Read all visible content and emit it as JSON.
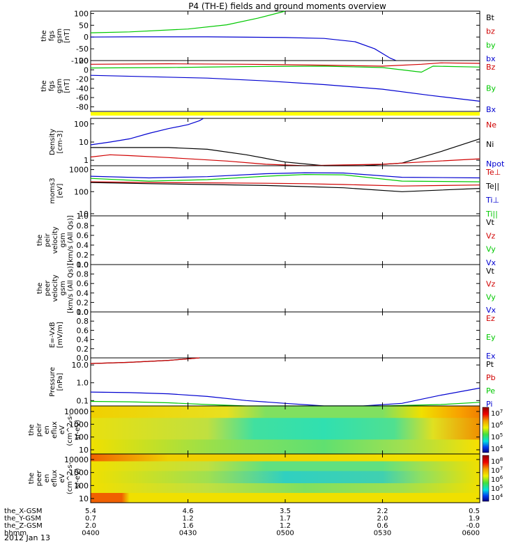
{
  "title": "P4 (TH-E) fields and ground moments overview",
  "date_label": "2012 Jan 13",
  "xaxis": {
    "rows": [
      {
        "label": "the_X-GSM",
        "values": [
          "5.4",
          "4.6",
          "3.5",
          "2.2",
          "0.5"
        ]
      },
      {
        "label": "the_Y-GSM",
        "values": [
          "0.7",
          "1.2",
          "1.7",
          "2.0",
          "1.9"
        ]
      },
      {
        "label": "the_Z-GSM",
        "values": [
          "2.0",
          "1.6",
          "1.2",
          "0.6",
          "-0.0"
        ]
      },
      {
        "label": "hhmm",
        "values": [
          "0400",
          "0430",
          "0500",
          "0530",
          "0600"
        ]
      }
    ],
    "time_range": [
      "0400",
      "0600"
    ]
  },
  "colors": {
    "black": "#000000",
    "red": "#d00000",
    "green": "#00c800",
    "blue": "#0000d0",
    "yellow": "#ffff00"
  },
  "chart_data": [
    {
      "type": "line",
      "ylabel": [
        "the",
        "fgs",
        "gsm",
        "[nT]"
      ],
      "yticks": [
        "100",
        "50",
        "0",
        "-50",
        "-100"
      ],
      "ylim": [
        -100,
        110
      ],
      "legend": [
        "Bt",
        "bz",
        "by",
        "bx"
      ],
      "series": [
        {
          "name": "by",
          "color": "green",
          "points": [
            [
              0,
              18
            ],
            [
              0.1,
              22
            ],
            [
              0.25,
              34
            ],
            [
              0.35,
              52
            ],
            [
              0.43,
              80
            ],
            [
              0.5,
              110
            ]
          ]
        },
        {
          "name": "bx",
          "color": "blue",
          "points": [
            [
              0,
              0
            ],
            [
              0.1,
              1
            ],
            [
              0.3,
              1
            ],
            [
              0.5,
              -2
            ],
            [
              0.6,
              -6
            ],
            [
              0.68,
              -20
            ],
            [
              0.73,
              -50
            ],
            [
              0.77,
              -90
            ],
            [
              0.785,
              -100
            ]
          ]
        }
      ]
    },
    {
      "type": "line",
      "ylabel": [
        "the",
        "fgs",
        "gsm",
        "[nT]"
      ],
      "yticks": [
        "20",
        "0",
        "-20",
        "-40",
        "-60",
        "-80"
      ],
      "ylim": [
        -90,
        20
      ],
      "legend": [
        "Bz",
        "By",
        "Bx"
      ],
      "series": [
        {
          "name": "Bz",
          "color": "red",
          "points": [
            [
              0,
              12
            ],
            [
              0.2,
              13
            ],
            [
              0.4,
              12
            ],
            [
              0.6,
              10
            ],
            [
              0.75,
              8
            ],
            [
              0.85,
              12
            ],
            [
              0.9,
              15
            ],
            [
              1,
              14
            ]
          ]
        },
        {
          "name": "By",
          "color": "green",
          "points": [
            [
              0,
              4
            ],
            [
              0.2,
              5
            ],
            [
              0.4,
              7
            ],
            [
              0.6,
              8
            ],
            [
              0.75,
              5
            ],
            [
              0.85,
              -5
            ],
            [
              0.88,
              8
            ],
            [
              1,
              6
            ]
          ]
        },
        {
          "name": "Bx",
          "color": "blue",
          "points": [
            [
              0,
              -12
            ],
            [
              0.15,
              -15
            ],
            [
              0.3,
              -18
            ],
            [
              0.45,
              -24
            ],
            [
              0.6,
              -32
            ],
            [
              0.75,
              -42
            ],
            [
              0.87,
              -55
            ],
            [
              1,
              -68
            ]
          ]
        }
      ],
      "band_color": "yellow"
    },
    {
      "type": "line",
      "log": true,
      "ylabel": [
        "Density",
        "[cm-3]"
      ],
      "yticks": [
        "100",
        "10",
        "1"
      ],
      "ylim": [
        0.5,
        200
      ],
      "legend": [
        "Ne",
        "Ni",
        "Npot"
      ],
      "series": [
        {
          "name": "Npot",
          "color": "blue",
          "points": [
            [
              0,
              7
            ],
            [
              0.05,
              10
            ],
            [
              0.1,
              15
            ],
            [
              0.15,
              30
            ],
            [
              0.2,
              55
            ],
            [
              0.25,
              90
            ],
            [
              0.28,
              150
            ],
            [
              0.29,
              200
            ]
          ]
        },
        {
          "name": "Ni",
          "color": "black",
          "points": [
            [
              0,
              5
            ],
            [
              0.1,
              5
            ],
            [
              0.2,
              5
            ],
            [
              0.3,
              4
            ],
            [
              0.4,
              2
            ],
            [
              0.5,
              0.8
            ],
            [
              0.6,
              0.5
            ],
            [
              0.7,
              0.5
            ],
            [
              0.8,
              0.7
            ],
            [
              0.9,
              3
            ],
            [
              1,
              15
            ]
          ]
        },
        {
          "name": "Ne",
          "color": "red",
          "points": [
            [
              0,
              1.5
            ],
            [
              0.05,
              2
            ],
            [
              0.1,
              1.8
            ],
            [
              0.2,
              1.4
            ],
            [
              0.35,
              0.9
            ],
            [
              0.45,
              0.6
            ],
            [
              0.55,
              0.5
            ],
            [
              0.65,
              0.55
            ],
            [
              0.75,
              0.6
            ],
            [
              0.85,
              0.8
            ],
            [
              1,
              1.2
            ]
          ]
        }
      ]
    },
    {
      "type": "line",
      "log": true,
      "ylabel": [
        "moms3",
        "[eV]"
      ],
      "yticks": [
        "1000",
        "100",
        "10"
      ],
      "ylim": [
        8,
        1500
      ],
      "legend": [
        "Te⊥",
        "Te||",
        "Ti⊥",
        "Ti||"
      ],
      "series": [
        {
          "name": "Ti⊥",
          "color": "blue",
          "points": [
            [
              0,
              500
            ],
            [
              0.15,
              420
            ],
            [
              0.3,
              480
            ],
            [
              0.45,
              650
            ],
            [
              0.55,
              720
            ],
            [
              0.65,
              700
            ],
            [
              0.8,
              450
            ],
            [
              1,
              420
            ]
          ]
        },
        {
          "name": "Ti||",
          "color": "green",
          "points": [
            [
              0,
              400
            ],
            [
              0.15,
              300
            ],
            [
              0.3,
              350
            ],
            [
              0.45,
              500
            ],
            [
              0.55,
              600
            ],
            [
              0.65,
              580
            ],
            [
              0.8,
              300
            ],
            [
              1,
              280
            ]
          ]
        },
        {
          "name": "Te⊥",
          "color": "red",
          "points": [
            [
              0,
              280
            ],
            [
              0.15,
              260
            ],
            [
              0.3,
              250
            ],
            [
              0.45,
              240
            ],
            [
              0.55,
              230
            ],
            [
              0.65,
              210
            ],
            [
              0.8,
              180
            ],
            [
              1,
              200
            ]
          ]
        },
        {
          "name": "Te||",
          "color": "black",
          "points": [
            [
              0,
              260
            ],
            [
              0.15,
              230
            ],
            [
              0.3,
              210
            ],
            [
              0.45,
              190
            ],
            [
              0.55,
              170
            ],
            [
              0.65,
              150
            ],
            [
              0.8,
              100
            ],
            [
              1,
              140
            ]
          ]
        }
      ]
    },
    {
      "type": "line",
      "ylabel": [
        "the",
        "peir",
        "velocity",
        "gsm",
        "[km/s (All Qs)]"
      ],
      "yticks": [
        "1.0",
        "0.8",
        "0.6",
        "0.4",
        "0.2",
        "0.0"
      ],
      "ylim": [
        0,
        1
      ],
      "legend": [
        "Vt",
        "Vz",
        "Vy",
        "Vx"
      ],
      "series": []
    },
    {
      "type": "line",
      "ylabel": [
        "the",
        "peer",
        "velocity",
        "gsm",
        "[km/s (All Qs)]"
      ],
      "yticks": [
        "1.0",
        "0.8",
        "0.6",
        "0.4",
        "0.2",
        "0.0"
      ],
      "ylim": [
        0,
        1
      ],
      "legend": [
        "Vt",
        "Vz",
        "Vy",
        "Vx"
      ],
      "series": []
    },
    {
      "type": "line",
      "ylabel": [
        "E=-VxB",
        "[mV/m]"
      ],
      "yticks": [
        "1.0",
        "0.8",
        "0.6",
        "0.4",
        "0.2",
        "0.0"
      ],
      "ylim": [
        0,
        1
      ],
      "legend": [
        "Ez",
        "Ey",
        "Ex"
      ],
      "series": []
    },
    {
      "type": "line",
      "log": true,
      "ylabel": [
        "Pressure",
        "[nPa]"
      ],
      "yticks": [
        "10.0",
        "1.0",
        "0.1"
      ],
      "ylim": [
        0.05,
        25
      ],
      "legend": [
        "Pt",
        "Pb",
        "Pe",
        "Pi"
      ],
      "series": [
        {
          "name": "Pt",
          "color": "black",
          "points": [
            [
              0,
              12
            ],
            [
              0.1,
              14
            ],
            [
              0.2,
              18
            ],
            [
              0.25,
              22
            ],
            [
              0.28,
              25
            ]
          ]
        },
        {
          "name": "Pb",
          "color": "red",
          "points": [
            [
              0,
              12
            ],
            [
              0.1,
              14
            ],
            [
              0.2,
              18
            ],
            [
              0.25,
              22
            ],
            [
              0.28,
              25
            ]
          ]
        },
        {
          "name": "Pi",
          "color": "blue",
          "points": [
            [
              0,
              0.3
            ],
            [
              0.1,
              0.28
            ],
            [
              0.2,
              0.24
            ],
            [
              0.3,
              0.17
            ],
            [
              0.4,
              0.1
            ],
            [
              0.5,
              0.07
            ],
            [
              0.6,
              0.05
            ],
            [
              0.7,
              0.05
            ],
            [
              0.8,
              0.07
            ],
            [
              0.9,
              0.2
            ],
            [
              1,
              0.5
            ]
          ]
        },
        {
          "name": "Pe",
          "color": "green",
          "points": [
            [
              0,
              0.09
            ],
            [
              0.1,
              0.085
            ],
            [
              0.2,
              0.075
            ],
            [
              0.3,
              0.06
            ],
            [
              0.4,
              0.05
            ],
            [
              0.6,
              0.05
            ],
            [
              0.75,
              0.05
            ],
            [
              0.9,
              0.06
            ],
            [
              1,
              0.08
            ]
          ]
        }
      ]
    },
    {
      "type": "heatmap",
      "ylabel": [
        "the",
        "peir",
        "en",
        "eflux",
        "eV",
        "(cm^2-s-",
        "sr-eV)"
      ],
      "yticks": [
        "10000",
        "1000",
        "100",
        "10"
      ],
      "colorbar": [
        "10^7",
        "10^6",
        "10^5",
        "10^4"
      ],
      "bands": [
        {
          "rows": [
            0,
            0.25
          ],
          "stops": [
            [
              0,
              "#f0d000"
            ],
            [
              0.35,
              "#e8e020"
            ],
            [
              0.45,
              "#80e060"
            ],
            [
              0.75,
              "#80e060"
            ],
            [
              0.85,
              "#f0e000"
            ],
            [
              0.95,
              "#f8a000"
            ],
            [
              1,
              "#f08000"
            ]
          ]
        },
        {
          "rows": [
            0.25,
            0.7
          ],
          "stops": [
            [
              0,
              "#e8e010"
            ],
            [
              0.3,
              "#c0e040"
            ],
            [
              0.42,
              "#40e0a0"
            ],
            [
              0.6,
              "#30e0b0"
            ],
            [
              0.78,
              "#50e090"
            ],
            [
              0.88,
              "#e0e020"
            ],
            [
              1,
              "#f09000"
            ]
          ]
        },
        {
          "rows": [
            0.7,
            1
          ],
          "stops": [
            [
              0,
              "#f0e000"
            ],
            [
              0.4,
              "#80e060"
            ],
            [
              0.6,
              "#60e070"
            ],
            [
              0.8,
              "#a0e050"
            ],
            [
              1,
              "#f8e000"
            ]
          ]
        }
      ]
    },
    {
      "type": "heatmap",
      "ylabel": [
        "the",
        "peer",
        "en",
        "eflux",
        "eV",
        "(cm^2-s-",
        "sr-eV)"
      ],
      "yticks": [
        "10000",
        "1000",
        "100",
        "10"
      ],
      "colorbar": [
        "10^8",
        "10^7",
        "10^6",
        "10^5",
        "10^4"
      ],
      "bands": [
        {
          "rows": [
            0,
            0.15
          ],
          "stops": [
            [
              0,
              "#f06000"
            ],
            [
              0.2,
              "#f0d000"
            ],
            [
              0.4,
              "#f0d000"
            ],
            [
              0.8,
              "#f0e000"
            ],
            [
              1,
              "#f0e000"
            ]
          ]
        },
        {
          "rows": [
            0.15,
            0.35
          ],
          "stops": [
            [
              0,
              "#f0e000"
            ],
            [
              0.3,
              "#c0e040"
            ],
            [
              0.45,
              "#60e080"
            ],
            [
              0.75,
              "#60e080"
            ],
            [
              0.85,
              "#a0e050"
            ],
            [
              1,
              "#f0e000"
            ]
          ]
        },
        {
          "rows": [
            0.35,
            0.6
          ],
          "stops": [
            [
              0,
              "#f0e000"
            ],
            [
              0.3,
              "#a0e050"
            ],
            [
              0.5,
              "#30d0c0"
            ],
            [
              0.75,
              "#40d0b0"
            ],
            [
              0.85,
              "#90e060"
            ],
            [
              1,
              "#f0e000"
            ]
          ]
        },
        {
          "rows": [
            0.6,
            0.8
          ],
          "stops": [
            [
              0,
              "#f0e000"
            ],
            [
              0.3,
              "#c0e040"
            ],
            [
              0.55,
              "#80e060"
            ],
            [
              0.8,
              "#a0e050"
            ],
            [
              1,
              "#f0e000"
            ]
          ]
        },
        {
          "rows": [
            0.8,
            1
          ],
          "stops": [
            [
              0,
              "#f06000"
            ],
            [
              0.08,
              "#f06000"
            ],
            [
              0.1,
              "#f0e000"
            ],
            [
              0.5,
              "#f0e000"
            ],
            [
              1,
              "#f0e000"
            ]
          ]
        }
      ]
    }
  ]
}
